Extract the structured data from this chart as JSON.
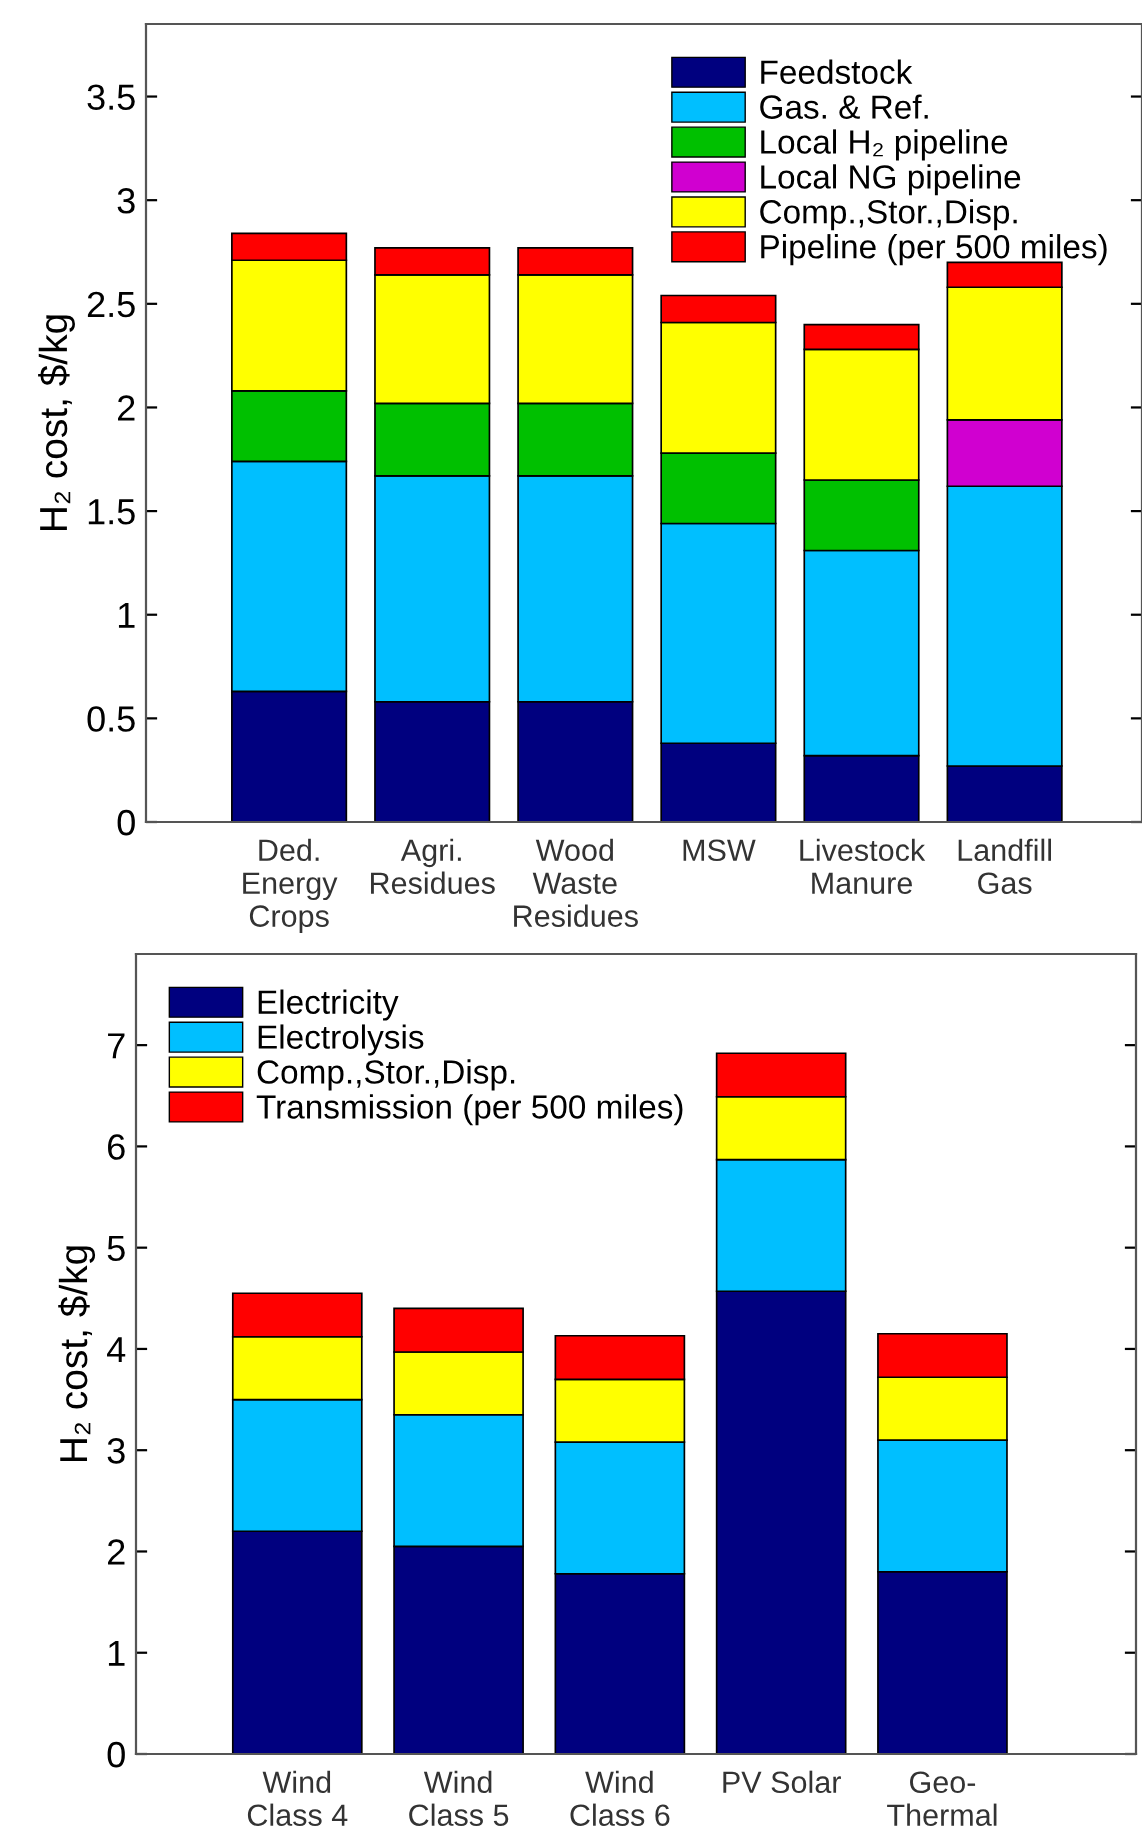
{
  "chart_data": [
    {
      "type": "bar",
      "stacked": true,
      "ylabel": "H₂ cost, $/kg",
      "legend": "top right",
      "categories": [
        "Ded.\nEnergy\nCrops",
        "Agri.\nResidues",
        "Wood\nWaste\nResidues",
        "MSW",
        "Livestock\nManure",
        "Landfill\nGas"
      ],
      "ylim": [
        0,
        3.85
      ],
      "yticks": [
        0,
        0.5,
        1,
        1.5,
        2,
        2.5,
        3,
        3.5
      ],
      "series": [
        {
          "name": "Feedstock",
          "color": "#00007f",
          "values": [
            0.63,
            0.58,
            0.58,
            0.38,
            0.32,
            0.27
          ]
        },
        {
          "name": "Gas. & Ref.",
          "color": "#00bfff",
          "values": [
            1.11,
            1.09,
            1.09,
            1.06,
            0.99,
            1.35
          ]
        },
        {
          "name": "Local H₂ pipeline",
          "color": "#00c000",
          "values": [
            0.34,
            0.35,
            0.35,
            0.34,
            0.34,
            null
          ]
        },
        {
          "name": "Local NG pipeline",
          "color": "#d000d0",
          "values": [
            null,
            null,
            null,
            null,
            null,
            0.32
          ]
        },
        {
          "name": "Comp.,Stor.,Disp.",
          "color": "#ffff00",
          "values": [
            0.63,
            0.62,
            0.62,
            0.63,
            0.63,
            0.64
          ]
        },
        {
          "name": "Pipeline (per 500 miles)",
          "color": "#ff0000",
          "values": [
            0.13,
            0.13,
            0.13,
            0.13,
            0.12,
            0.12
          ]
        }
      ]
    },
    {
      "type": "bar",
      "stacked": true,
      "ylabel": "H₂ cost, $/kg",
      "legend": "top left",
      "categories": [
        "Wind\nClass 4",
        "Wind\nClass 5",
        "Wind\nClass 6",
        "PV Solar",
        "Geo-\nThermal"
      ],
      "ylim": [
        0,
        7.9
      ],
      "yticks": [
        0,
        1,
        2,
        3,
        4,
        5,
        6,
        7
      ],
      "series": [
        {
          "name": "Electricity",
          "color": "#00007f",
          "values": [
            2.2,
            2.05,
            1.78,
            4.57,
            1.8
          ]
        },
        {
          "name": "Electrolysis",
          "color": "#00bfff",
          "values": [
            1.3,
            1.3,
            1.3,
            1.3,
            1.3
          ]
        },
        {
          "name": "Comp.,Stor.,Disp.",
          "color": "#ffff00",
          "values": [
            0.62,
            0.62,
            0.62,
            0.62,
            0.62
          ]
        },
        {
          "name": "Transmission (per 500 miles)",
          "color": "#ff0000",
          "values": [
            0.43,
            0.43,
            0.43,
            0.43,
            0.43
          ]
        }
      ]
    }
  ]
}
